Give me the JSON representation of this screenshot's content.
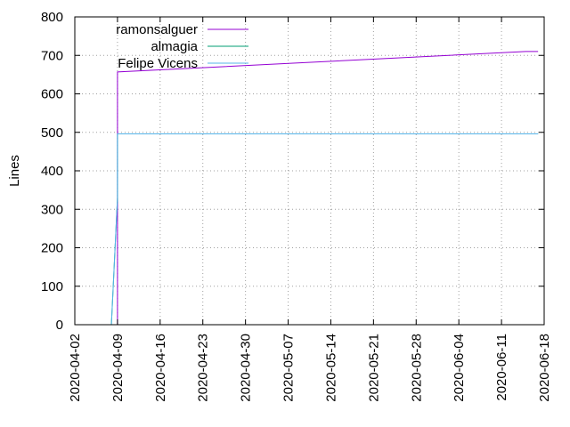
{
  "chart_data": {
    "type": "line",
    "ylabel": "Lines",
    "xlabel": "",
    "ylim": [
      0,
      800
    ],
    "xlim": [
      "2020-04-02",
      "2020-06-18"
    ],
    "grid": true,
    "legend_position": "top-left",
    "x_ticks": [
      "2020-04-02",
      "2020-04-09",
      "2020-04-16",
      "2020-04-23",
      "2020-04-30",
      "2020-05-07",
      "2020-05-14",
      "2020-05-21",
      "2020-05-28",
      "2020-06-04",
      "2020-06-11",
      "2020-06-18"
    ],
    "y_ticks": [
      0,
      100,
      200,
      300,
      400,
      500,
      600,
      700,
      800
    ],
    "series": [
      {
        "name": "ramonsalguer",
        "color": "#9400d3",
        "points": [
          [
            "2020-04-09",
            0
          ],
          [
            "2020-04-09",
            657
          ],
          [
            "2020-06-15",
            710
          ],
          [
            "2020-06-17",
            710
          ]
        ]
      },
      {
        "name": "almagia",
        "color": "#009e73",
        "points": [
          [
            "2020-04-08",
            0
          ],
          [
            "2020-04-09",
            330
          ],
          [
            "2020-04-09",
            496
          ],
          [
            "2020-06-17",
            496
          ]
        ]
      },
      {
        "name": "Felipe Vicens",
        "color": "#56b4e9",
        "points": [
          [
            "2020-04-08",
            0
          ],
          [
            "2020-04-09",
            330
          ],
          [
            "2020-04-09",
            496
          ],
          [
            "2020-06-17",
            496
          ]
        ]
      }
    ]
  }
}
